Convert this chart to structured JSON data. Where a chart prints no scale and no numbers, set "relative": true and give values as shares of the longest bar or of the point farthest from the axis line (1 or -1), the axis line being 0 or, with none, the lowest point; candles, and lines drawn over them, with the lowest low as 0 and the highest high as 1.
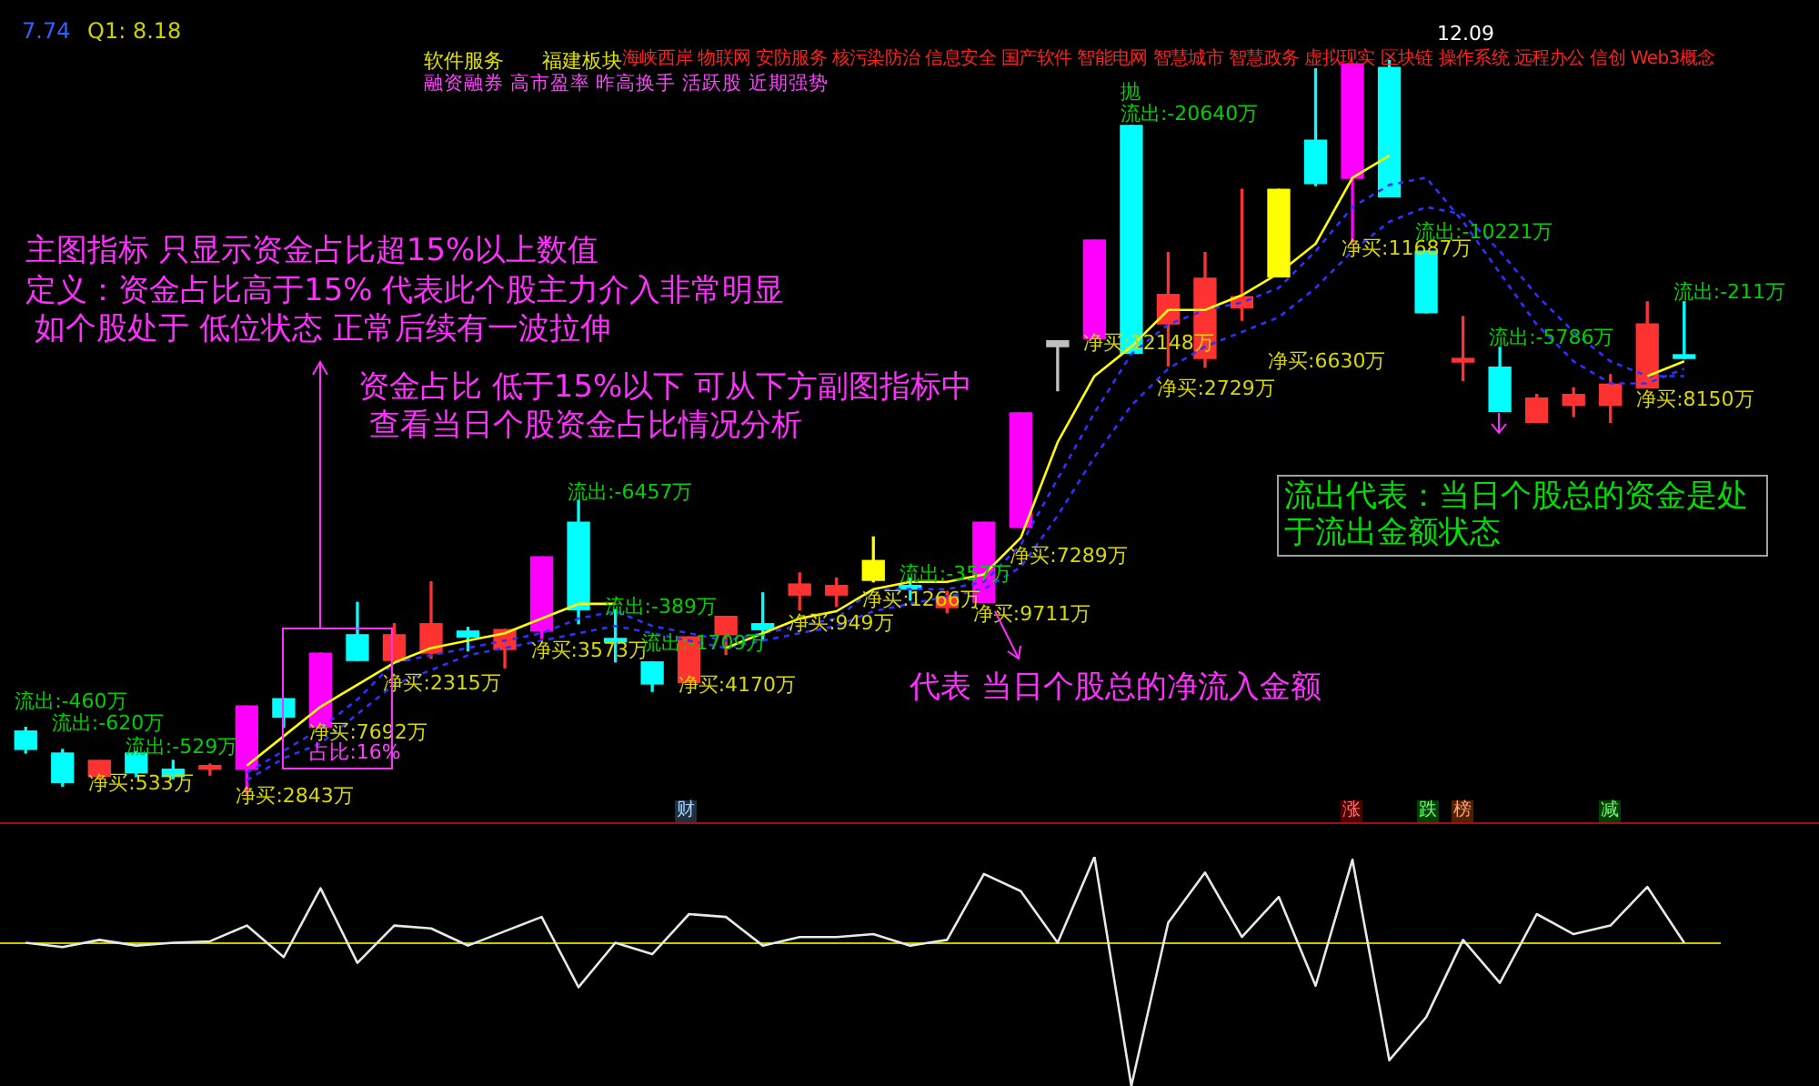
{
  "chart_data": [
    {
      "type": "candlestick",
      "relative": true,
      "categories": [
        null,
        null,
        null,
        null,
        null,
        null,
        null,
        null,
        null,
        null,
        null,
        null,
        null,
        null,
        null,
        null,
        null,
        null,
        null,
        null,
        null,
        null,
        null,
        null,
        null,
        null,
        null,
        null,
        null,
        null,
        null,
        null,
        null,
        null,
        null,
        null,
        null,
        null,
        null,
        null,
        null,
        null,
        null,
        null,
        null,
        null
      ],
      "ohlc": [
        [
          0.087,
          0.092,
          0.057,
          0.062
        ],
        [
          0.057,
          0.062,
          0.012,
          0.017
        ],
        [
          0.025,
          0.047,
          0.022,
          0.047
        ],
        [
          0.057,
          0.059,
          0.025,
          0.03
        ],
        [
          0.035,
          0.047,
          0.022,
          0.025
        ],
        [
          0.035,
          0.042,
          0.027,
          0.04
        ],
        [
          0.035,
          0.121,
          0,
          0.121
        ],
        [
          0.131,
          0.131,
          0.092,
          0.106
        ],
        [
          0.092,
          0.193,
          0.092,
          0.193
        ],
        [
          0.218,
          0.262,
          0.183,
          0.183
        ],
        [
          0.183,
          0.233,
          0.183,
          0.218
        ],
        [
          0.193,
          0.29,
          0.186,
          0.233
        ],
        [
          0.223,
          0.228,
          0.196,
          0.215
        ],
        [
          0.198,
          0.225,
          0.173,
          0.225
        ],
        [
          0.223,
          0.324,
          0.213,
          0.324
        ],
        [
          0.371,
          0.401,
          0.233,
          0.252
        ],
        [
          0.213,
          0.252,
          0.181,
          0.208
        ],
        [
          0.181,
          0.181,
          0.141,
          0.151
        ],
        [
          0.153,
          0.215,
          0.153,
          0.215
        ],
        [
          0.218,
          0.243,
          0.191,
          0.243
        ],
        [
          0.233,
          0.275,
          0.21,
          0.225
        ],
        [
          0.272,
          0.302,
          0.252,
          0.287
        ],
        [
          0.272,
          0.295,
          0.257,
          0.285
        ],
        [
          0.292,
          0.351,
          0.29,
          0.319
        ],
        [
          0.285,
          0.295,
          0.265,
          0.28
        ],
        [
          0.255,
          0.277,
          0.248,
          0.27
        ],
        [
          0.262,
          0.371,
          0.262,
          0.371
        ],
        [
          0.364,
          0.52,
          0.364,
          0.52
        ],
        [
          0.618,
          0.618,
          0.55,
          0.61
        ],
        [
          0.621,
          0.755,
          0.621,
          0.755
        ],
        [
          0.911,
          0.911,
          0.601,
          0.601
        ],
        [
          0.641,
          0.738,
          0.584,
          0.681
        ],
        [
          0.594,
          0.738,
          0.582,
          0.703
        ],
        [
          0.663,
          0.824,
          0.646,
          0.678
        ],
        [
          0.705,
          0.824,
          0.705,
          0.824
        ],
        [
          0.891,
          0.988,
          0.829,
          0.832
        ],
        [
          0.839,
          0.995,
          0.752,
          0.995
        ],
        [
          0.99,
          1,
          0.814,
          0.814
        ],
        [
          0.74,
          0.74,
          0.656,
          0.656
        ],
        [
          0.589,
          0.651,
          0.564,
          0.594
        ],
        [
          0.582,
          0.609,
          0.522,
          0.522
        ],
        [
          0.507,
          0.545,
          0.507,
          0.54
        ],
        [
          0.53,
          0.554,
          0.515,
          0.545
        ],
        [
          0.53,
          0.572,
          0.507,
          0.559
        ],
        [
          0.554,
          0.671,
          0.554,
          0.641
        ],
        [
          0.599,
          0.671,
          0.594,
          0.594
        ]
      ],
      "colors": [
        "#00ffff",
        "#00ffff",
        "#ff3232",
        "#00ffff",
        "#00ffff",
        "#ff3232",
        "#ff00ff",
        "#00ffff",
        "#ff00ff",
        "#00ffff",
        "#ff3232",
        "#ff3232",
        "#00ffff",
        "#ff3232",
        "#ff00ff",
        "#00ffff",
        "#00ffff",
        "#00ffff",
        "#ff3232",
        "#ff3232",
        "#00ffff",
        "#ff3232",
        "#ff3232",
        "#ffff00",
        "#00ffff",
        "#ff3232",
        "#ff00ff",
        "#ff00ff",
        "#c0c0c0",
        "#ff00ff",
        "#00ffff",
        "#ff3232",
        "#ff3232",
        "#ff3232",
        "#ffff00",
        "#00ffff",
        "#ff00ff",
        "#00ffff",
        "#00ffff",
        "#ff3232",
        "#00ffff",
        "#ff3232",
        "#ff3232",
        "#ff3232",
        "#ff3232",
        "#00ffff"
      ],
      "series": [
        {
          "type": "line",
          "color": "#ffff00",
          "line_style": "solid",
          "values": [
            null,
            null,
            null,
            null,
            null,
            null,
            0.04,
            0.08,
            0.12,
            0.15,
            0.18,
            0.2,
            0.21,
            0.22,
            0.24,
            0.26,
            0.26,
            null,
            null,
            0.2,
            0.22,
            0.24,
            0.25,
            0.28,
            0.29,
            0.29,
            0.3,
            0.35,
            0.48,
            0.57,
            0.61,
            0.66,
            0.66,
            0.68,
            0.71,
            0.75,
            0.84,
            0.87,
            null,
            null,
            null,
            null,
            null,
            null,
            0.57,
            0.59
          ]
        },
        {
          "type": "line",
          "color": "#3030ff",
          "line_style": "dashed",
          "values": [
            null,
            null,
            null,
            null,
            null,
            null,
            0.03,
            0.06,
            0.09,
            0.13,
            0.18,
            0.19,
            0.2,
            0.21,
            0.22,
            0.24,
            0.25,
            0.23,
            0.22,
            0.21,
            0.22,
            0.23,
            0.24,
            0.28,
            0.28,
            0.28,
            0.29,
            0.34,
            0.43,
            0.52,
            0.6,
            0.64,
            0.66,
            0.67,
            0.69,
            0.74,
            0.8,
            0.83,
            0.84,
            0.78,
            0.71,
            0.64,
            0.59,
            0.56,
            0.56,
            0.58
          ]
        },
        {
          "type": "line",
          "color": "#3030ff",
          "line_style": "dashed",
          "values": [
            null,
            null,
            null,
            null,
            null,
            null,
            0.02,
            0.05,
            0.07,
            0.11,
            0.15,
            0.17,
            0.19,
            0.2,
            0.21,
            0.22,
            0.23,
            0.22,
            0.21,
            0.2,
            0.21,
            0.22,
            0.23,
            0.25,
            0.26,
            0.27,
            0.28,
            0.31,
            0.38,
            0.46,
            0.53,
            0.58,
            0.61,
            0.63,
            0.65,
            0.69,
            0.74,
            0.78,
            0.8,
            0.79,
            0.74,
            0.68,
            0.63,
            0.59,
            0.57,
            0.57
          ]
        }
      ],
      "annotations": [
        "流出:-460万",
        "流出:-620万",
        "净买:533万",
        "流出:-529万",
        "净买:2843万",
        "净买:7692万",
        "占比:16%",
        "净买:2315万",
        "流出:-6457万",
        "净买:3573万",
        "流出:-389万",
        "流出:-1709万",
        "净买:4170万",
        "净买:949万",
        "流出:-357万",
        "净买:1266万",
        "净买:9711万",
        "净买:7289万",
        "净买:12148万",
        "流出:-20640万",
        "抛",
        "净买:2729万",
        "净买:6630万",
        "净买:11687万",
        "流出:-10221万",
        "流出:-5786万",
        "净买:8150万",
        "流出:-211万",
        "7.74",
        "Q1: 8.18",
        "软件服务",
        "福建板块",
        "海峡西岸 物联网 安防服务 核污染防治 信息安全 国产软件 智能电网 智慧城市 智慧政务 虚拟现实 区块链 操作系统 远程办公 信创 Web3概念",
        "融资融券 高市盈率 昨高换手 活跃股 近期强势",
        "主图指标 只显示资金占比超15%以上数值",
        "定义：资金占比高于15% 代表此个股主力介入非常明显",
        "如个股处于 低位状态 正常后续有一波拉伸",
        "资金占比 低于15%以下   可从下方副图指标中",
        "查看当日个股资金占比情况分析",
        "代表 当日个股总的净流入金额",
        "流出代表：当日个股总的资金是处于流出金额状态",
        "12.09",
        "财",
        "涨",
        "跌",
        "榜",
        "减"
      ]
    },
    {
      "type": "line",
      "relative": true,
      "color": "#e8e8e8",
      "categories": [
        null,
        null,
        null,
        null,
        null,
        null,
        null,
        null,
        null,
        null,
        null,
        null,
        null,
        null,
        null,
        null,
        null,
        null,
        null,
        null,
        null,
        null,
        null,
        null,
        null,
        null,
        null,
        null,
        null,
        null,
        null,
        null,
        null,
        null,
        null,
        null,
        null,
        null,
        null,
        null,
        null,
        null,
        null,
        null,
        null,
        null
      ],
      "values": [
        0,
        -0.03,
        0.02,
        -0.02,
        0,
        0.01,
        0.12,
        -0.1,
        0.38,
        -0.14,
        0.12,
        0.1,
        -0.02,
        0.08,
        0.18,
        -0.31,
        0,
        -0.08,
        0.2,
        0.18,
        -0.02,
        0.04,
        0.04,
        0.06,
        -0.02,
        0.02,
        0.48,
        0.36,
        0,
        0.6,
        -1,
        0.14,
        0.49,
        0.04,
        0.32,
        -0.3,
        0.58,
        -0.82,
        -0.52,
        0.02,
        -0.28,
        0.2,
        0.06,
        0.12,
        0.39,
        0
      ],
      "ref_lines": [
        {
          "axis": "y",
          "value": 0,
          "color": "#c8c800"
        }
      ]
    }
  ]
}
